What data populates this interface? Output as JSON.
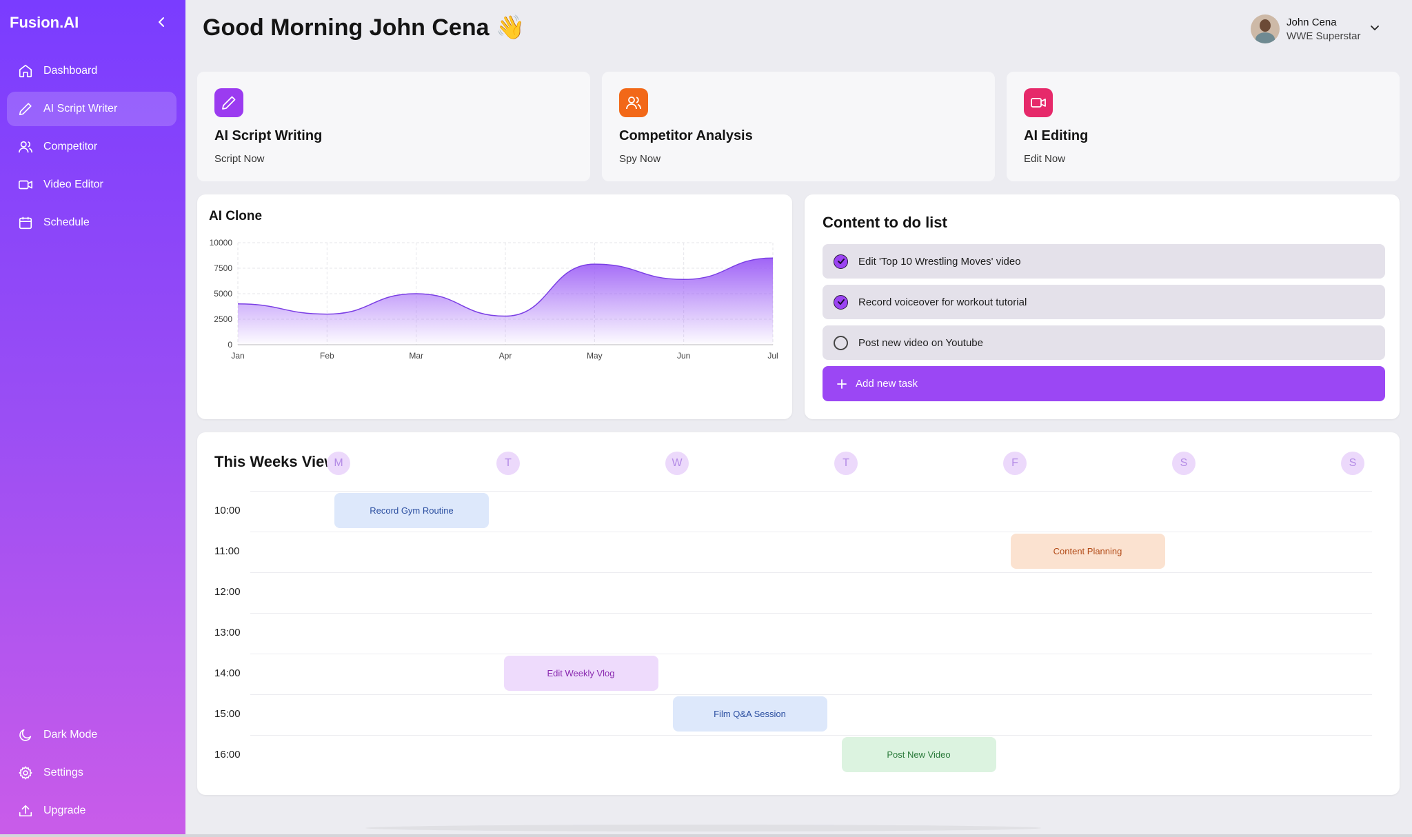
{
  "app": {
    "brand": "Fusion.AI"
  },
  "sidebar": {
    "items": [
      {
        "label": "Dashboard",
        "icon": "home-icon"
      },
      {
        "label": "AI Script Writer",
        "icon": "pencil-icon"
      },
      {
        "label": "Competitor",
        "icon": "users-icon"
      },
      {
        "label": "Video Editor",
        "icon": "video-camera-icon"
      },
      {
        "label": "Schedule",
        "icon": "calendar-icon"
      }
    ],
    "active_index": 1,
    "bottom": [
      {
        "label": "Dark Mode",
        "icon": "moon-icon"
      },
      {
        "label": "Settings",
        "icon": "gear-icon"
      },
      {
        "label": "Upgrade",
        "icon": "upload-icon"
      }
    ]
  },
  "header": {
    "greeting": "Good Morning John Cena 👋",
    "user": {
      "name": "John Cena",
      "role": "WWE Superstar"
    }
  },
  "features": [
    {
      "title": "AI Script Writing",
      "link": "Script Now",
      "icon": "pencil-icon",
      "color": "#9b3bf0"
    },
    {
      "title": "Competitor Analysis",
      "link": "Spy Now",
      "icon": "users-icon",
      "color": "#f26818"
    },
    {
      "title": "AI Editing",
      "link": "Edit Now",
      "icon": "video-camera-icon",
      "color": "#e6296a"
    }
  ],
  "chart_data": {
    "type": "area",
    "title": "AI Clone",
    "categories": [
      "Jan",
      "Feb",
      "Mar",
      "Apr",
      "May",
      "Jun",
      "Jul"
    ],
    "values": [
      4000,
      3000,
      5000,
      2800,
      7900,
      6400,
      8500
    ],
    "yticks": [
      0,
      2500,
      5000,
      7500,
      10000
    ],
    "ylim": [
      0,
      10000
    ],
    "grid": true,
    "color": "#9b5cf6"
  },
  "todo": {
    "title": "Content to do list",
    "items": [
      {
        "text": "Edit 'Top 10 Wrestling Moves' video",
        "done": true
      },
      {
        "text": "Record voiceover for workout tutorial",
        "done": true
      },
      {
        "text": "Post new video on Youtube",
        "done": false
      }
    ],
    "add_label": "Add new task"
  },
  "week": {
    "title": "This Weeks View",
    "days": [
      "M",
      "T",
      "W",
      "T",
      "F",
      "S",
      "S"
    ],
    "times": [
      "10:00",
      "11:00",
      "12:00",
      "13:00",
      "14:00",
      "15:00",
      "16:00"
    ],
    "events": [
      {
        "label": "Record Gym Routine",
        "day": 1,
        "time": 0,
        "bg": "#dde8fb",
        "fg": "#2a4ea0"
      },
      {
        "label": "Content Planning",
        "day": 5,
        "time": 1,
        "bg": "#fbe2d0",
        "fg": "#b24a16"
      },
      {
        "label": "Edit Weekly Vlog",
        "day": 2,
        "time": 4,
        "bg": "#eedbfc",
        "fg": "#8a2ab0"
      },
      {
        "label": "Film Q&A Session",
        "day": 3,
        "time": 5,
        "bg": "#dde8fb",
        "fg": "#2a4ea0"
      },
      {
        "label": "Post New Video",
        "day": 4,
        "time": 6,
        "bg": "#dcf3e0",
        "fg": "#2a7a3a"
      }
    ]
  }
}
